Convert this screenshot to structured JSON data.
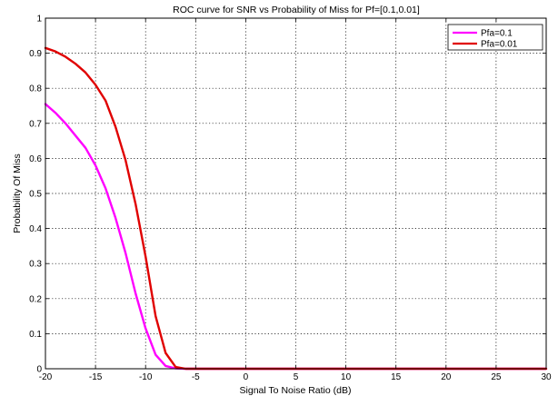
{
  "chart_data": {
    "type": "line",
    "title": "ROC curve for SNR vs Probability of Miss for Pf=[0.1,0.01]",
    "xlabel": "Signal To Noise Ratio (dB)",
    "ylabel": "Probability Of Miss",
    "xlim": [
      -20,
      30
    ],
    "ylim": [
      0,
      1
    ],
    "xticks": [
      -20,
      -15,
      -10,
      -5,
      0,
      5,
      10,
      15,
      20,
      25,
      30
    ],
    "yticks": [
      0,
      0.1,
      0.2,
      0.3,
      0.4,
      0.5,
      0.6,
      0.7,
      0.8,
      0.9,
      1
    ],
    "xtick_labels": [
      "-20",
      "-15",
      "-10",
      "-5",
      "0",
      "5",
      "10",
      "15",
      "20",
      "25",
      "30"
    ],
    "ytick_labels": [
      "0",
      "0.1",
      "0.2",
      "0.3",
      "0.4",
      "0.5",
      "0.6",
      "0.7",
      "0.8",
      "0.9",
      "1"
    ],
    "grid": true,
    "legend_position": "top-right",
    "series": [
      {
        "name": "Pfa=0.1",
        "color": "#ff00ff",
        "x": [
          -20,
          -19,
          -18,
          -17,
          -16,
          -15,
          -14,
          -13,
          -12,
          -11,
          -10,
          -9,
          -8,
          -7,
          -6,
          -5,
          30
        ],
        "y": [
          0.755,
          0.73,
          0.7,
          0.665,
          0.63,
          0.58,
          0.515,
          0.43,
          0.33,
          0.215,
          0.115,
          0.04,
          0.008,
          0.001,
          0,
          0,
          0
        ]
      },
      {
        "name": "Pfa=0.01",
        "color": "#e00000",
        "x": [
          -20,
          -19,
          -18,
          -17,
          -16,
          -15,
          -14,
          -13,
          -12,
          -11,
          -10,
          -9,
          -8,
          -7,
          -6,
          30
        ],
        "y": [
          0.915,
          0.905,
          0.89,
          0.87,
          0.845,
          0.81,
          0.765,
          0.69,
          0.595,
          0.47,
          0.32,
          0.15,
          0.045,
          0.005,
          0,
          0
        ]
      }
    ]
  }
}
